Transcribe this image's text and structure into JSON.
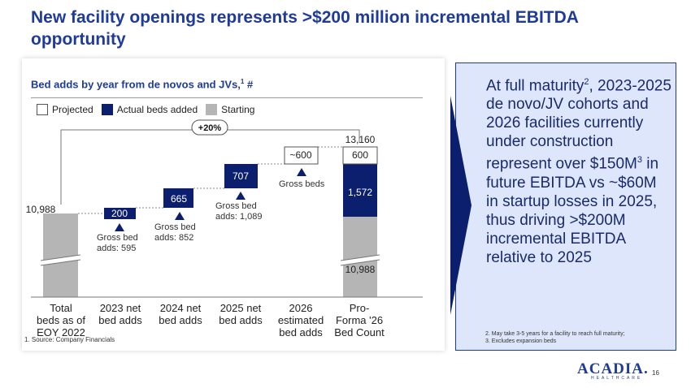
{
  "title": "New facility openings represents >$200 million incremental EBITDA opportunity",
  "subtitle": "Bed adds by year from de novos and JVs,",
  "subtitle_sup": "1",
  "subtitle_suffix": " #",
  "legend": {
    "projected": "Projected",
    "actual": "Actual beds added",
    "starting": "Starting"
  },
  "colors": {
    "navy": "#0c1f6e",
    "gray": "#b5b5b5",
    "title_blue": "#1f3b99",
    "callout_bg": "#dde6fa"
  },
  "growth_badge": "+20%",
  "chart_data": {
    "type": "waterfall",
    "title": "Bed adds by year from de novos and JVs, #",
    "categories": [
      "Total beds as of EOY 2022",
      "2023 net bed adds",
      "2024 net bed adds",
      "2025 net bed adds",
      "2026 estimated bed adds",
      "Pro-Forma '26 Bed Count"
    ],
    "values": [
      10988,
      200,
      665,
      707,
      600,
      13160
    ],
    "pro_forma_breakdown": {
      "starting": 10988,
      "actual": 1572,
      "projected": 600
    },
    "bar_labels": [
      "10,988",
      "200",
      "665",
      "707",
      "~600",
      "13,160"
    ],
    "gross_beds": [
      "Gross bed adds: 595",
      "Gross bed adds: 852",
      "Gross bed adds: 1,089",
      "Gross beds"
    ],
    "series_types": [
      "starting",
      "actual",
      "actual",
      "actual",
      "projected",
      "stacked"
    ],
    "ylim": [
      9800,
      13300
    ]
  },
  "labels": {
    "bar0": "10,988",
    "bar1": "200",
    "bar2": "665",
    "bar3": "707",
    "bar4": "~600",
    "bar5_total": "13,160",
    "bar5_projected": "600",
    "bar5_actual": "1,572",
    "bar5_start": "10,988",
    "gross1": "Gross bed\nadds: 595",
    "gross2": "Gross bed\nadds: 852",
    "gross3": "Gross bed\nadds: 1,089",
    "gross4": "Gross beds"
  },
  "categories_display": [
    "Total\nbeds as of\nEOY 2022",
    "2023 net\nbed adds",
    "2024 net\nbed adds",
    "2025 net\nbed adds",
    "2026\nestimated\nbed adds",
    "Pro-\nForma '26\nBed Count"
  ],
  "footnote": "1.     Source: Company Financials",
  "callout": {
    "t1": "At full maturity",
    "sup1": "2",
    "t2": ", 2023-2025 de novo/JV cohorts and 2026 facilities currently under construction represent over $150M",
    "sup2": "3",
    "t3": " in future EBITDA vs ~$60M in startup losses in 2025, thus driving >$200M incremental EBITDA relative to 2025",
    "note1": "2. May take 3-5 years for a facility to reach full maturity;",
    "note2": "3. Excludes expansion beds"
  },
  "logo": "ACADIA.",
  "logo_sub": "HEALTHCARE",
  "page_number": "16"
}
